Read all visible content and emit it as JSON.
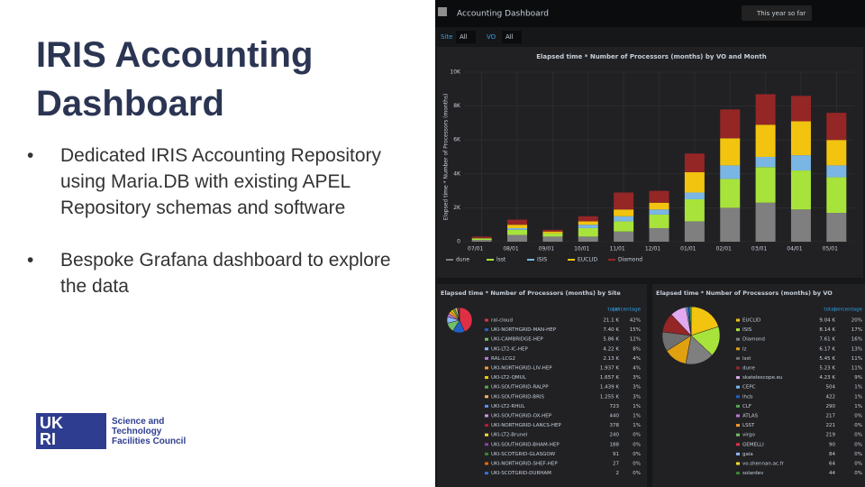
{
  "slide": {
    "title": "IRIS Accounting Dashboard",
    "bullets": [
      "Dedicated IRIS Accounting Repository using Maria.DB with existing APEL Repository schemas and software",
      "Bespoke Grafana dashboard to explore the data"
    ],
    "logo": {
      "lines": [
        "Science and",
        "Technology",
        "Facilities Council"
      ]
    }
  },
  "dashboard": {
    "breadcrumb": "Accounting Dashboard",
    "time_range": "This year so far",
    "filters": [
      {
        "label": "Site",
        "value": "All"
      },
      {
        "label": "VO",
        "value": "All"
      }
    ],
    "chart_data": {
      "type": "bar",
      "stacked": true,
      "title": "Elapsed time * Number of Processors (months) by VO and Month",
      "y_label": "Elapsed time * Number of Processors (months)",
      "categories": [
        "07/01",
        "08/01",
        "09/01",
        "10/01",
        "11/01",
        "12/01",
        "01/01",
        "02/01",
        "03/01",
        "04/01",
        "05/01"
      ],
      "series": [
        {
          "name": "dune",
          "color": "#7f7f7f",
          "values": [
            100,
            400,
            300,
            300,
            600,
            800,
            1200,
            2000,
            2300,
            1900,
            1700
          ]
        },
        {
          "name": "lsst",
          "color": "#a8e33b",
          "values": [
            100,
            300,
            200,
            500,
            600,
            800,
            1300,
            1700,
            2100,
            2300,
            2100
          ]
        },
        {
          "name": "ISIS",
          "color": "#7ab6e4",
          "values": [
            0,
            100,
            0,
            200,
            300,
            300,
            400,
            800,
            600,
            900,
            700
          ]
        },
        {
          "name": "EUCLID",
          "color": "#f2c40f",
          "values": [
            0,
            200,
            100,
            200,
            400,
            400,
            1200,
            1600,
            1900,
            2000,
            1500
          ]
        },
        {
          "name": "Diamond",
          "color": "#952626",
          "values": [
            100,
            300,
            100,
            300,
            1000,
            700,
            1100,
            1700,
            1800,
            1500,
            1600
          ]
        }
      ],
      "ylim": [
        0,
        10000
      ],
      "yticks": [
        0,
        {
          "value": 2000,
          "label": "2K"
        },
        {
          "value": 4000,
          "label": "4K"
        },
        {
          "value": 6000,
          "label": "6K"
        },
        {
          "value": 8000,
          "label": "8K"
        },
        {
          "value": 10000,
          "label": "10K"
        }
      ],
      "grid": true
    },
    "site_panel": {
      "title": "Elapsed time * Number of Processors (months) by Site",
      "columns": [
        "total",
        "percentage"
      ],
      "rows": [
        {
          "name": "ral-cloud",
          "total": "21.1 K",
          "percentage": "42%",
          "color": "#e02f44"
        },
        {
          "name": "UKI-NORTHGRID-MAN-HEP",
          "total": "7.40 K",
          "percentage": "15%",
          "color": "#1f60c4"
        },
        {
          "name": "UKI-CAMBRIDGE-HEP",
          "total": "5.86 K",
          "percentage": "12%",
          "color": "#73bf69"
        },
        {
          "name": "UKI-LT2-IC-HEP",
          "total": "4.22 K",
          "percentage": "8%",
          "color": "#8ab8ff"
        },
        {
          "name": "RAL-LCG2",
          "total": "2.13 K",
          "percentage": "4%",
          "color": "#b877d9"
        },
        {
          "name": "UKI-NORTHGRID-LIV-HEP",
          "total": "1.937 K",
          "percentage": "4%",
          "color": "#ff9830"
        },
        {
          "name": "UKI-LT2-QMUL",
          "total": "1.657 K",
          "percentage": "3%",
          "color": "#f2cc0c"
        },
        {
          "name": "UKI-SOUTHGRID-RALPP",
          "total": "1.439 K",
          "percentage": "3%",
          "color": "#56a64b"
        },
        {
          "name": "UKI-SOUTHGRID-BRIS",
          "total": "1.255 K",
          "percentage": "3%",
          "color": "#ffb357"
        },
        {
          "name": "UKI-LT2-RHUL",
          "total": "723",
          "percentage": "1%",
          "color": "#5794f2"
        },
        {
          "name": "UKI-SOUTHGRID-OX-HEP",
          "total": "440",
          "percentage": "1%",
          "color": "#ca95e5"
        },
        {
          "name": "UKI-NORTHGRID-LANCS-HEP",
          "total": "378",
          "percentage": "1%",
          "color": "#c4162a"
        },
        {
          "name": "UKI-LT2-Brunel",
          "total": "240",
          "percentage": "0%",
          "color": "#fade2a"
        },
        {
          "name": "UKI-SOUTHGRID-BHAM-HEP",
          "total": "188",
          "percentage": "0%",
          "color": "#8f3bb8"
        },
        {
          "name": "UKI-SCOTGRID-GLASGOW",
          "total": "91",
          "percentage": "0%",
          "color": "#37872d"
        },
        {
          "name": "UKI-NORTHGRID-SHEF-HEP",
          "total": "27",
          "percentage": "0%",
          "color": "#fa6400"
        },
        {
          "name": "UKI-SCOTGRID-DURHAM",
          "total": "2",
          "percentage": "0%",
          "color": "#3274d9"
        }
      ]
    },
    "vo_panel": {
      "title": "Elapsed time * Number of Processors (months) by VO",
      "columns": [
        "total",
        "percentage"
      ],
      "rows": [
        {
          "name": "EUCLID",
          "total": "9.04 K",
          "percentage": "20%",
          "color": "#f2c40f"
        },
        {
          "name": "ISIS",
          "total": "8.14 K",
          "percentage": "17%",
          "color": "#a8e33b"
        },
        {
          "name": "Diamond",
          "total": "7.61 K",
          "percentage": "16%",
          "color": "#7f7f7f"
        },
        {
          "name": "lz",
          "total": "6.17 K",
          "percentage": "13%",
          "color": "#e0a010"
        },
        {
          "name": "lsst",
          "total": "5.45 K",
          "percentage": "11%",
          "color": "#6f6f6f"
        },
        {
          "name": "dune",
          "total": "5.23 K",
          "percentage": "11%",
          "color": "#952626"
        },
        {
          "name": "skatelescope.eu",
          "total": "4.23 K",
          "percentage": "9%",
          "color": "#e2a8f0"
        },
        {
          "name": "CEPC",
          "total": "504",
          "percentage": "1%",
          "color": "#7ab6e4"
        },
        {
          "name": "lhcb",
          "total": "422",
          "percentage": "1%",
          "color": "#1f60c4"
        },
        {
          "name": "CLF",
          "total": "290",
          "percentage": "1%",
          "color": "#56a64b"
        },
        {
          "name": "ATLAS",
          "total": "217",
          "percentage": "0%",
          "color": "#b877d9"
        },
        {
          "name": "LSST",
          "total": "221",
          "percentage": "0%",
          "color": "#ff9830"
        },
        {
          "name": "virgo",
          "total": "219",
          "percentage": "0%",
          "color": "#73bf69"
        },
        {
          "name": "GEMELLI",
          "total": "90",
          "percentage": "0%",
          "color": "#e02f44"
        },
        {
          "name": "gaia",
          "total": "84",
          "percentage": "0%",
          "color": "#8ab8ff"
        },
        {
          "name": "vo.shennan.ac.fr",
          "total": "64",
          "percentage": "0%",
          "color": "#fade2a"
        },
        {
          "name": "solardev",
          "total": "44",
          "percentage": "0%",
          "color": "#37872d"
        }
      ]
    }
  }
}
